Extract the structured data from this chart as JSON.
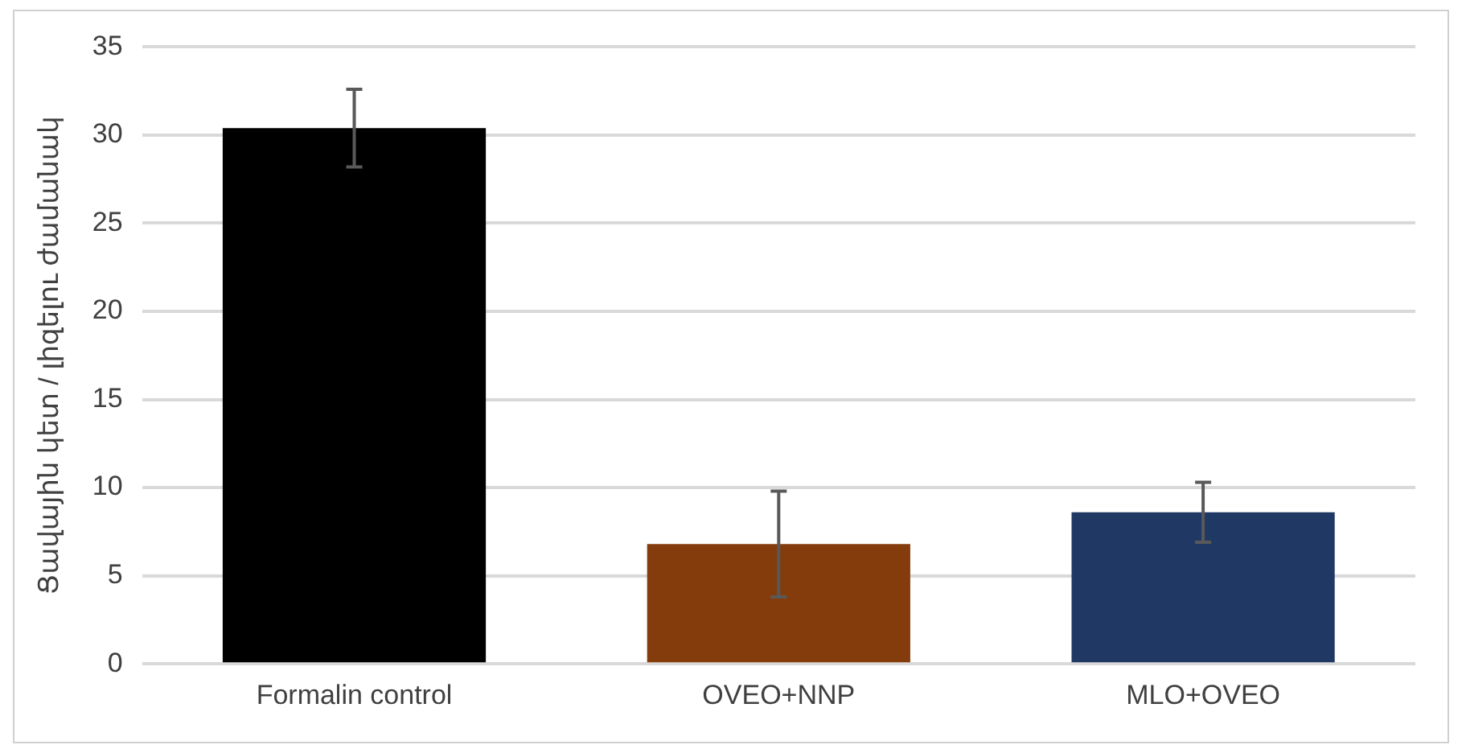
{
  "chart_data": {
    "type": "bar",
    "ylabel": "Ցավային կետ / լիզելու ժամանակ",
    "categories": [
      "Formalin control",
      "OVEO+NNP",
      "MLO+OVEO"
    ],
    "values": [
      30.4,
      6.8,
      8.6
    ],
    "errors": [
      2.2,
      3.0,
      1.7
    ],
    "colors": [
      "#000000",
      "#843c0c",
      "#203864"
    ],
    "ylim": [
      0,
      35
    ],
    "yticks": [
      0,
      5,
      10,
      15,
      20,
      25,
      30,
      35
    ],
    "grid": "y",
    "legend": false
  }
}
